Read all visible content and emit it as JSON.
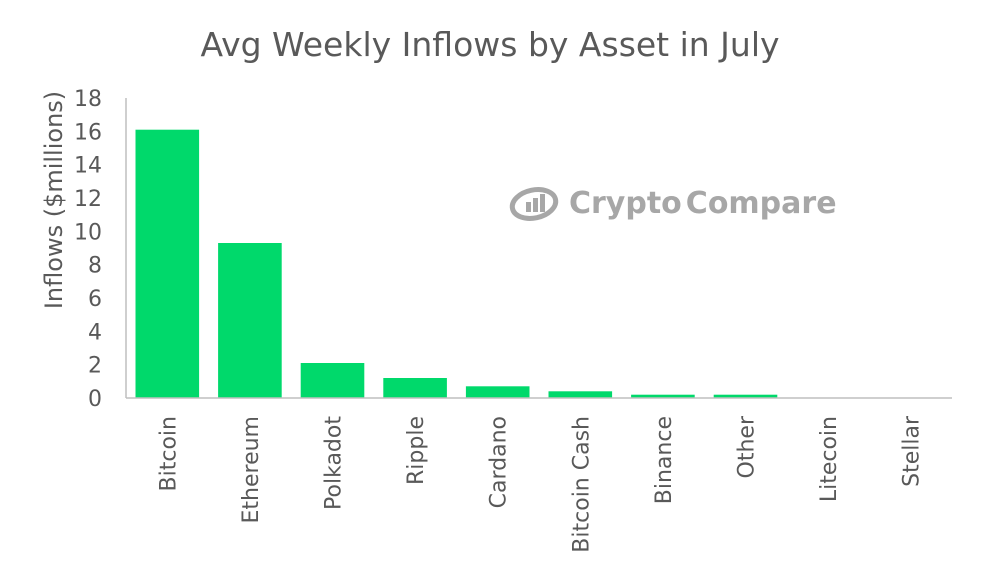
{
  "chart_data": {
    "type": "bar",
    "title": "Avg Weekly Inflows by Asset in July",
    "xlabel": "",
    "ylabel": "Inflows ($millions)",
    "ylim": [
      0,
      18
    ],
    "yticks": [
      0,
      2,
      4,
      6,
      8,
      10,
      12,
      14,
      16,
      18
    ],
    "grid": false,
    "categories": [
      "Bitcoin",
      "Ethereum",
      "Polkadot",
      "Ripple",
      "Cardano",
      "Bitcoin Cash",
      "Binance",
      "Other",
      "Litecoin",
      "Stellar"
    ],
    "values": [
      16.1,
      9.3,
      2.1,
      1.2,
      0.7,
      0.4,
      0.2,
      0.2,
      0.0,
      0.0
    ],
    "bar_color": "#00d96b"
  },
  "watermark": {
    "text_left": "Crypto",
    "text_right": "Compare",
    "icon": "cryptocompare-logo-icon",
    "color": "#8a8a8a"
  },
  "colors": {
    "text": "#595959",
    "axis": "#bfbfbf"
  }
}
